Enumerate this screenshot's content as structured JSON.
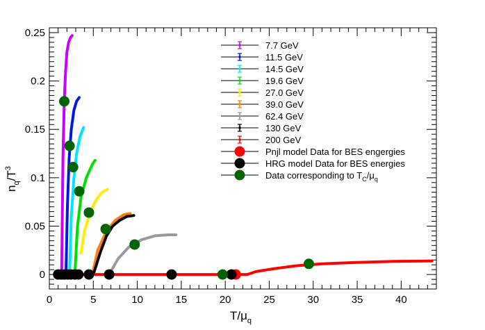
{
  "chart_data": {
    "type": "line",
    "xlabel": "T/μ",
    "xlabel_sub": "q",
    "ylabel": "n",
    "ylabel_sub": "q",
    "ylabel_tail": "/T",
    "ylabel_sup": "3",
    "xlim": [
      0,
      44
    ],
    "ylim": [
      -0.015,
      0.255
    ],
    "xticks": [
      0,
      5,
      10,
      15,
      20,
      25,
      30,
      35,
      40
    ],
    "xtick_labels": [
      "0",
      "5",
      "10",
      "15",
      "20",
      "25",
      "30",
      "35",
      "40"
    ],
    "yticks": [
      0,
      0.05,
      0.1,
      0.15,
      0.2,
      0.25
    ],
    "ytick_labels": [
      "0",
      "0.05",
      "0.1",
      "0.15",
      "0.2",
      "0.25"
    ],
    "legend_position": "top-center",
    "series": [
      {
        "name": "7.7 GeV",
        "color": "#cc00ff",
        "x": [
          1.4,
          1.55,
          1.7,
          1.85,
          2.0,
          2.2,
          2.4,
          2.6
        ],
        "y": [
          0.0,
          0.12,
          0.18,
          0.21,
          0.23,
          0.24,
          0.245,
          0.247
        ]
      },
      {
        "name": "11.5 GeV",
        "color": "#0018e0",
        "x": [
          1.9,
          2.05,
          2.25,
          2.5,
          2.8,
          3.1,
          3.4
        ],
        "y": [
          0.005,
          0.07,
          0.12,
          0.15,
          0.17,
          0.179,
          0.183
        ]
      },
      {
        "name": "14.5 GeV",
        "color": "#00e5ff",
        "x": [
          2.3,
          2.5,
          2.8,
          3.1,
          3.5,
          3.9
        ],
        "y": [
          0.0,
          0.06,
          0.1,
          0.125,
          0.143,
          0.152
        ]
      },
      {
        "name": "19.6 GeV",
        "color": "#00e100",
        "x": [
          2.9,
          3.2,
          3.6,
          4.2,
          4.9,
          5.2
        ],
        "y": [
          0.0,
          0.05,
          0.08,
          0.1,
          0.114,
          0.118
        ]
      },
      {
        "name": "27.0 GeV",
        "color": "#ffee00",
        "x": [
          3.6,
          4.0,
          4.6,
          5.3,
          6.0,
          6.6
        ],
        "y": [
          0.022,
          0.045,
          0.063,
          0.077,
          0.085,
          0.088
        ]
      },
      {
        "name": "39.0 GeV",
        "color": "#ff7f00",
        "x": [
          4.9,
          5.5,
          6.5,
          7.5,
          8.5,
          9.2
        ],
        "y": [
          0.0,
          0.025,
          0.045,
          0.056,
          0.062,
          0.063
        ]
      },
      {
        "name": "62.4 GeV",
        "color": "#9a9a9a",
        "x": [
          6.8,
          7.8,
          9.0,
          10.5,
          12.0,
          13.5,
          14.4
        ],
        "y": [
          0.0,
          0.016,
          0.028,
          0.036,
          0.04,
          0.041,
          0.041
        ]
      },
      {
        "name": "130 GeV",
        "color": "#000000",
        "x": [
          5.0,
          5.8,
          6.5,
          7.2,
          8.0,
          8.8,
          9.6
        ],
        "y": [
          0.0,
          0.023,
          0.04,
          0.05,
          0.056,
          0.06,
          0.061
        ]
      },
      {
        "name": "200 GeV",
        "color": "#ff0000",
        "x": [
          0.8,
          5,
          10,
          15,
          20,
          21.2,
          22.5,
          23.5,
          25.5,
          28,
          31,
          35,
          39,
          43.5
        ],
        "y": [
          0,
          0,
          0,
          0,
          0,
          0,
          0,
          0.003,
          0.006,
          0.009,
          0.011,
          0.0125,
          0.0135,
          0.014
        ]
      }
    ],
    "markers": [
      {
        "name": "Pnjl model Data for BES engergies",
        "color": "#ff0000",
        "x": [
          21.2
        ],
        "y": [
          0
        ]
      },
      {
        "name": "HRG model Data for BES energies",
        "color": "#000000",
        "x": [
          1.0,
          1.35,
          1.7,
          2.1,
          2.45,
          2.9,
          3.3,
          4.5,
          6.8,
          13.9,
          20.7
        ],
        "y": [
          0,
          0,
          0,
          0,
          0,
          0,
          0,
          0,
          0,
          0,
          0
        ]
      },
      {
        "name": "Data corresponding to T",
        "name_sub": "C",
        "name_tail": "/μ",
        "name_tail_sub": "q",
        "color": "#006400",
        "x": [
          1.7,
          2.3,
          2.7,
          3.4,
          4.5,
          6.4,
          9.7,
          19.7,
          29.5
        ],
        "y": [
          0.179,
          0.133,
          0.111,
          0.086,
          0.064,
          0.047,
          0.031,
          0.0,
          0.011
        ]
      }
    ]
  }
}
